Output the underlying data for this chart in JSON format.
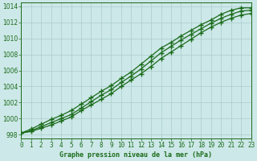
{
  "title": "Graphe pression niveau de la mer (hPa)",
  "x": [
    0,
    1,
    2,
    3,
    4,
    5,
    6,
    7,
    8,
    9,
    10,
    11,
    12,
    13,
    14,
    15,
    16,
    17,
    18,
    19,
    20,
    21,
    22,
    23
  ],
  "line_top": [
    998.2,
    998.7,
    999.3,
    999.9,
    1000.4,
    1001.0,
    1001.8,
    1002.6,
    1003.4,
    1004.1,
    1005.0,
    1005.8,
    1006.8,
    1007.8,
    1008.8,
    1009.5,
    1010.3,
    1011.0,
    1011.7,
    1012.3,
    1013.0,
    1013.5,
    1013.8,
    1013.8
  ],
  "line_mid": [
    998.2,
    998.5,
    999.0,
    999.5,
    1000.0,
    1000.5,
    1001.3,
    1002.1,
    1002.9,
    1003.6,
    1004.5,
    1005.3,
    1006.2,
    1007.2,
    1008.2,
    1009.0,
    1009.8,
    1010.5,
    1011.2,
    1011.9,
    1012.5,
    1013.0,
    1013.4,
    1013.5
  ],
  "line_bot": [
    998.2,
    998.4,
    998.8,
    999.2,
    999.7,
    1000.2,
    1001.0,
    1001.7,
    1002.4,
    1003.1,
    1004.0,
    1004.8,
    1005.6,
    1006.5,
    1007.5,
    1008.3,
    1009.1,
    1009.9,
    1010.7,
    1011.4,
    1012.0,
    1012.5,
    1012.9,
    1013.1
  ],
  "ylim": [
    997.5,
    1014.5
  ],
  "yticks": [
    998,
    1000,
    1002,
    1004,
    1006,
    1008,
    1010,
    1012,
    1014
  ],
  "xlim": [
    0,
    23
  ],
  "line_color": "#1a6b1a",
  "bg_color": "#cde8e8",
  "grid_color": "#aacccc",
  "title_color": "#1a6b1a",
  "marker": "+",
  "marker_size": 4,
  "linewidth": 0.9,
  "xlabel_fontsize": 6.0,
  "tick_fontsize": 5.5
}
